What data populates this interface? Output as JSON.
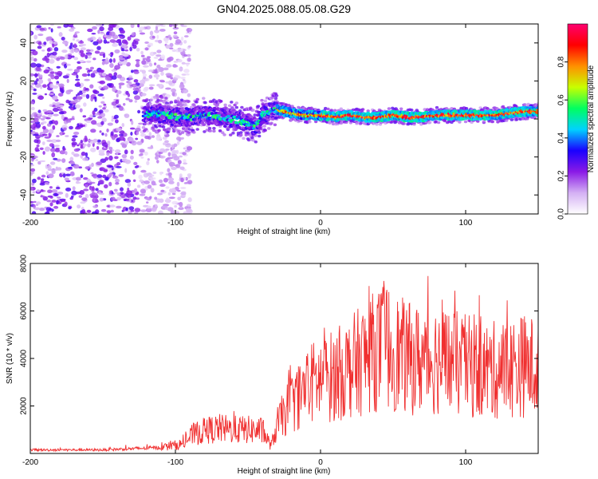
{
  "title": "GN04.2025.088.05.08.G29",
  "chart_data": [
    {
      "type": "heatmap",
      "xlabel": "Height of straight line (km)",
      "ylabel": "Frequency (Hz)",
      "xlim": [
        -200,
        150
      ],
      "ylim": [
        -50,
        50
      ],
      "xticks": [
        {
          "value": -200,
          "label": "-200"
        },
        {
          "value": -100,
          "label": "-100"
        },
        {
          "value": 0,
          "label": "0"
        },
        {
          "value": 100,
          "label": "100"
        }
      ],
      "yticks": [
        {
          "value": -40,
          "label": "-40"
        },
        {
          "value": -20,
          "label": "-20"
        },
        {
          "value": 0,
          "label": "0"
        },
        {
          "value": 20,
          "label": "20"
        },
        {
          "value": 40,
          "label": "40"
        }
      ],
      "colorbar": {
        "label": "Normalized spectral amplitude",
        "range": [
          0,
          1
        ],
        "ticks": [
          {
            "value": 0.0,
            "label": "0.0"
          },
          {
            "value": 0.2,
            "label": "0.2"
          },
          {
            "value": 0.4,
            "label": "0.4"
          },
          {
            "value": 0.6,
            "label": "0.6"
          },
          {
            "value": 0.8,
            "label": "0.8"
          }
        ],
        "colors": [
          "#ffffff",
          "#d4b0f4",
          "#8a1ae6",
          "#1a00ff",
          "#00d2ff",
          "#00ff60",
          "#c8ff00",
          "#ff9000",
          "#ff0000",
          "#ff0070"
        ]
      },
      "noise_region": {
        "x_from": -200,
        "x_to": -100,
        "y_from": -50,
        "y_to": 50
      },
      "ridge": {
        "x": [
          -122,
          -110,
          -100,
          -90,
          -80,
          -70,
          -60,
          -50,
          -45,
          -40,
          -35,
          -30,
          -20,
          -10,
          0,
          10,
          20,
          30,
          40,
          50,
          60,
          70,
          80,
          90,
          100,
          110,
          120,
          130,
          140,
          150
        ],
        "frequency": [
          2,
          3,
          1,
          1,
          2,
          1,
          0,
          -2,
          -4,
          2,
          4,
          5,
          3,
          2,
          2,
          1,
          2,
          1,
          1,
          2,
          1,
          1,
          2,
          2,
          2,
          2,
          2,
          3,
          4,
          4
        ]
      }
    },
    {
      "type": "line",
      "xlabel": "Height of straight line (km)",
      "ylabel": "SNR (10 * v/v)",
      "xlim": [
        -200,
        150
      ],
      "ylim": [
        0,
        8000
      ],
      "xticks": [
        {
          "value": -200,
          "label": "-200"
        },
        {
          "value": -100,
          "label": "-100"
        },
        {
          "value": 0,
          "label": "0"
        },
        {
          "value": 100,
          "label": "100"
        }
      ],
      "yticks": [
        {
          "value": 2000,
          "label": "2000"
        },
        {
          "value": 4000,
          "label": "4000"
        },
        {
          "value": 6000,
          "label": "6000"
        },
        {
          "value": 8000,
          "label": "8000"
        }
      ],
      "series": [
        {
          "name": "SNR",
          "color": "#f03030",
          "x": [
            -200,
            -150,
            -110,
            -95,
            -88,
            -80,
            -70,
            -60,
            -50,
            -40,
            -34,
            -30,
            -25,
            -20,
            -15,
            -10,
            -5,
            0,
            10,
            20,
            30,
            40,
            45,
            50,
            60,
            70,
            80,
            90,
            100,
            110,
            120,
            130,
            140,
            150
          ],
          "values": [
            150,
            150,
            250,
            400,
            800,
            950,
            1050,
            1000,
            1000,
            950,
            300,
            1200,
            1700,
            2100,
            2400,
            2700,
            3000,
            3100,
            3300,
            3600,
            4000,
            4400,
            4600,
            4300,
            4000,
            3900,
            4000,
            3800,
            3700,
            3500,
            3500,
            3600,
            3700,
            3600
          ]
        }
      ]
    }
  ]
}
